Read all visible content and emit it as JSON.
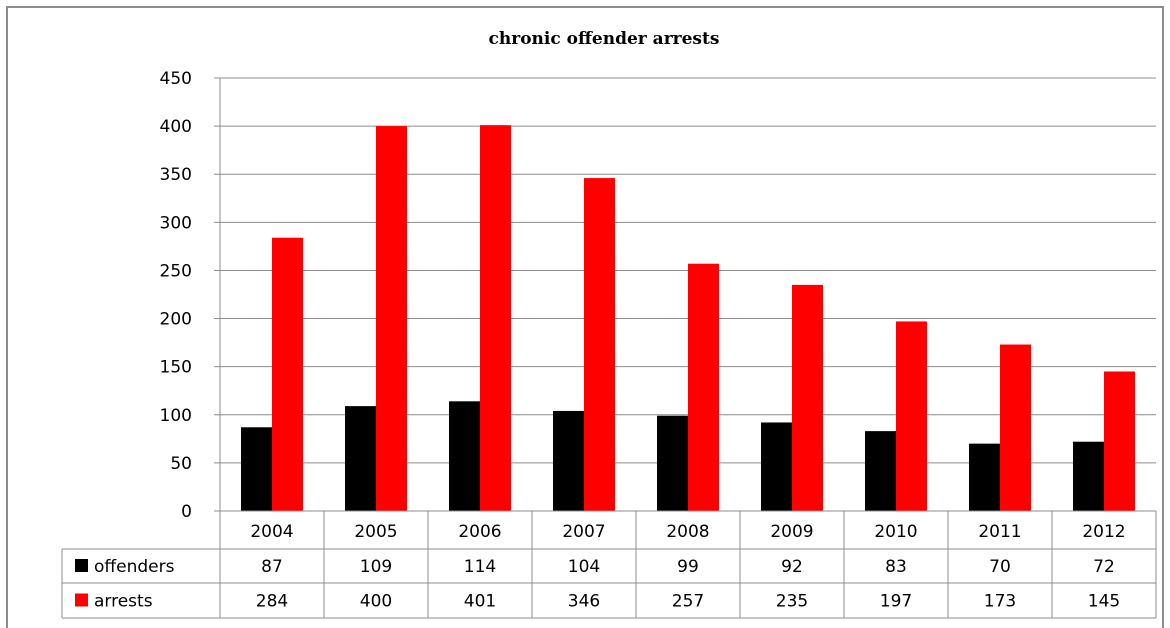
{
  "chart_data": {
    "type": "bar",
    "title": "chronic offender arrests",
    "categories": [
      "2004",
      "2005",
      "2006",
      "2007",
      "2008",
      "2009",
      "2010",
      "2011",
      "2012"
    ],
    "series": [
      {
        "name": "offenders",
        "color": "#000000",
        "values": [
          87,
          109,
          114,
          104,
          99,
          92,
          83,
          70,
          72
        ]
      },
      {
        "name": "arrests",
        "color": "#ff0000",
        "values": [
          284,
          400,
          401,
          346,
          257,
          235,
          197,
          173,
          145
        ]
      }
    ],
    "ylim": [
      0,
      450
    ],
    "yticks": [
      0,
      50,
      100,
      150,
      200,
      250,
      300,
      350,
      400,
      450
    ],
    "grid": true,
    "legend": "data-table"
  }
}
